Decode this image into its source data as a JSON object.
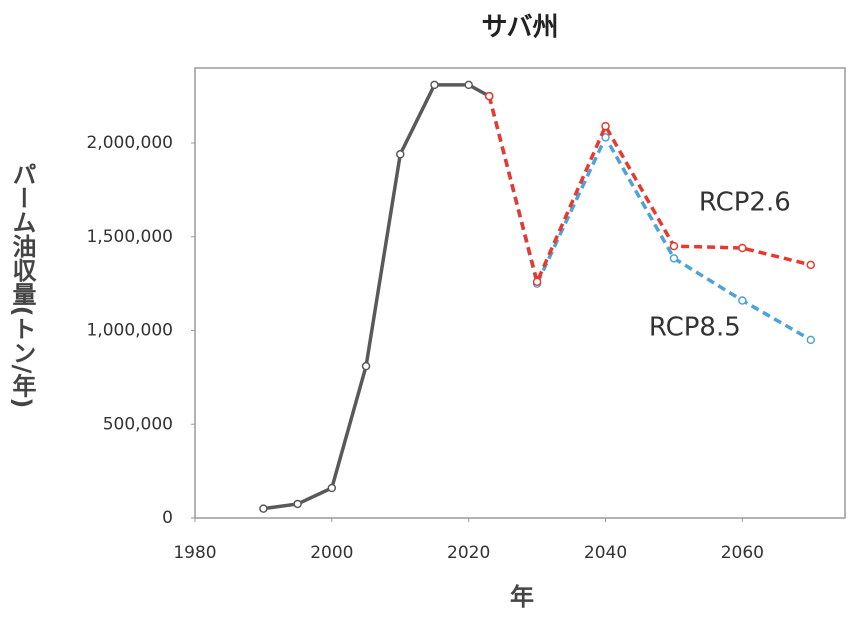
{
  "chart_data": {
    "type": "line",
    "title": "サバ州",
    "x_label": "年",
    "y_label": "パーム油収量(トン/年)",
    "xlim": [
      1980,
      2075
    ],
    "xticks": [
      1980,
      2000,
      2020,
      2040,
      2060
    ],
    "ylim": [
      0,
      2400000
    ],
    "yticks": [
      0,
      {
        "value": 500000,
        "label": "500,000"
      },
      {
        "value": 1000000,
        "label": "1,000,000"
      },
      {
        "value": 1500000,
        "label": "1,500,000"
      },
      {
        "value": 2000000,
        "label": "2,000,000"
      }
    ],
    "grid": false,
    "series": [
      {
        "color": "#595959",
        "style": "solid",
        "x": [
          1990,
          1995,
          2000,
          2005,
          2010,
          2015,
          2020,
          2023
        ],
        "values": [
          50000,
          75000,
          160000,
          810000,
          1940000,
          2310000,
          2310000,
          2250000
        ]
      },
      {
        "name": "RCP8.5",
        "color": "#4da3d9",
        "style": "dashed",
        "x": [
          2023,
          2030,
          2040,
          2050,
          2060,
          2070
        ],
        "values": [
          2250000,
          1250000,
          2030000,
          1385000,
          1160000,
          950000
        ]
      },
      {
        "name": "RCP2.6",
        "color": "#e8392f",
        "style": "dashed",
        "x": [
          2023,
          2030,
          2040,
          2050,
          2060,
          2070
        ],
        "values": [
          2250000,
          1260000,
          2090000,
          1450000,
          1440000,
          1350000
        ]
      }
    ]
  }
}
